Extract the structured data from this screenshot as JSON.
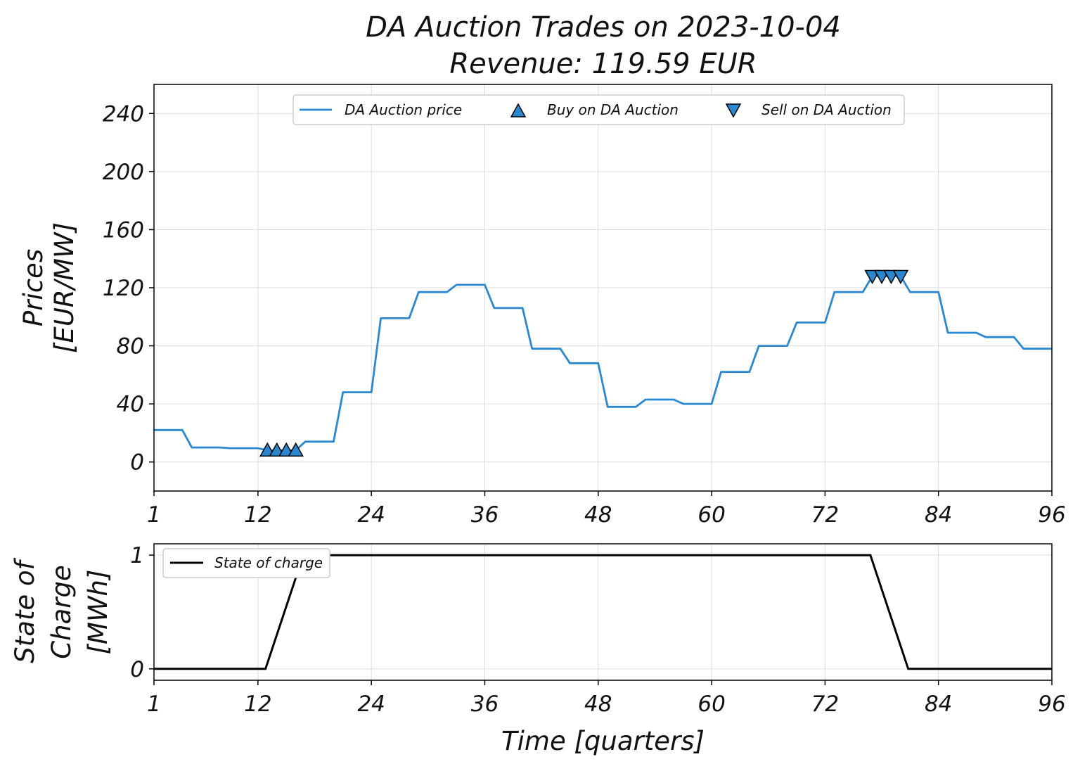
{
  "title_line1": "DA Auction Trades on 2023-10-04",
  "title_line2": "Revenue: 119.59 EUR",
  "colors": {
    "price": "#2b88d0",
    "marker": "#2b88d0",
    "soc": "#000000"
  },
  "chart_data": [
    {
      "type": "line",
      "ylabel_line1": "Prices",
      "ylabel_line2": "[EUR/MW]",
      "xlim": [
        1,
        96
      ],
      "ylim": [
        -20,
        260
      ],
      "xticks": [
        1,
        12,
        24,
        36,
        48,
        60,
        72,
        84,
        96
      ],
      "yticks": [
        0,
        40,
        80,
        120,
        160,
        200,
        240
      ],
      "grid": true,
      "legend_position": "top-center",
      "series": [
        {
          "name": "DA Auction price",
          "x": [
            1,
            2,
            3,
            4,
            5,
            6,
            7,
            8,
            9,
            10,
            11,
            12,
            13,
            14,
            15,
            16,
            17,
            18,
            19,
            20,
            21,
            22,
            23,
            24,
            25,
            26,
            27,
            28,
            29,
            30,
            31,
            32,
            33,
            34,
            35,
            36,
            37,
            38,
            39,
            40,
            41,
            42,
            43,
            44,
            45,
            46,
            47,
            48,
            49,
            50,
            51,
            52,
            53,
            54,
            55,
            56,
            57,
            58,
            59,
            60,
            61,
            62,
            63,
            64,
            65,
            66,
            67,
            68,
            69,
            70,
            71,
            72,
            73,
            74,
            75,
            76,
            77,
            78,
            79,
            80,
            81,
            82,
            83,
            84,
            85,
            86,
            87,
            88,
            89,
            90,
            91,
            92,
            93,
            94,
            95,
            96
          ],
          "y": [
            22,
            22,
            22,
            22,
            10,
            10,
            10,
            10,
            9.5,
            9.5,
            9.5,
            9.5,
            8,
            8,
            8,
            8,
            14,
            14,
            14,
            14,
            48,
            48,
            48,
            48,
            99,
            99,
            99,
            99,
            117,
            117,
            117,
            117,
            122,
            122,
            122,
            122,
            106,
            106,
            106,
            106,
            78,
            78,
            78,
            78,
            68,
            68,
            68,
            68,
            38,
            38,
            38,
            38,
            43,
            43,
            43,
            43,
            40,
            40,
            40,
            40,
            62,
            62,
            62,
            62,
            80,
            80,
            80,
            80,
            96,
            96,
            96,
            96,
            117,
            117,
            117,
            117,
            128,
            128,
            128,
            128,
            117,
            117,
            117,
            117,
            89,
            89,
            89,
            89,
            86,
            86,
            86,
            86,
            78,
            78,
            78,
            78
          ]
        },
        {
          "name": "Buy on DA Auction",
          "x": [
            13,
            14,
            15,
            16
          ],
          "y": [
            8,
            8,
            8,
            8
          ]
        },
        {
          "name": "Sell on DA Auction",
          "x": [
            77,
            78,
            79,
            80
          ],
          "y": [
            128,
            128,
            128,
            128
          ]
        }
      ]
    },
    {
      "type": "line",
      "ylabel_line1": "State of",
      "ylabel_line2": "Charge",
      "ylabel_line3": "[MWh]",
      "xlabel": "Time [quarters]",
      "xlim": [
        1,
        96
      ],
      "ylim": [
        -0.1,
        1.1
      ],
      "xticks": [
        1,
        12,
        24,
        36,
        48,
        60,
        72,
        84,
        96
      ],
      "yticks": [
        0,
        1
      ],
      "grid": true,
      "legend_position": "top-left",
      "series": [
        {
          "name": "State of charge",
          "x": [
            1,
            12.8,
            16.8,
            76.8,
            80.8,
            96
          ],
          "y": [
            0,
            0,
            1,
            1,
            0,
            0
          ]
        }
      ]
    }
  ]
}
